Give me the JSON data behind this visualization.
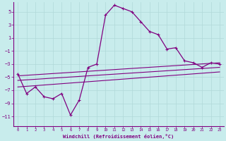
{
  "xlabel": "Windchill (Refroidissement éolien,°C)",
  "bg_color": "#c8ecec",
  "grid_color": "#b0d8d8",
  "line_color": "#800080",
  "xlim": [
    -0.5,
    23.5
  ],
  "ylim": [
    -12.5,
    6.5
  ],
  "yticks": [
    5,
    3,
    1,
    -1,
    -3,
    -5,
    -7,
    -9,
    -11
  ],
  "xticks": [
    0,
    1,
    2,
    3,
    4,
    5,
    6,
    7,
    8,
    9,
    10,
    11,
    12,
    13,
    14,
    15,
    16,
    17,
    18,
    19,
    20,
    21,
    22,
    23
  ],
  "main_x": [
    0,
    1,
    2,
    3,
    4,
    5,
    6,
    7,
    8,
    9,
    10,
    11,
    12,
    13,
    14,
    15,
    16,
    17,
    18,
    19,
    20,
    21,
    22,
    23
  ],
  "main_y": [
    -4.5,
    -7.5,
    -6.5,
    -8.0,
    -8.3,
    -7.5,
    -10.8,
    -8.5,
    -3.5,
    -3.0,
    4.5,
    6.0,
    5.5,
    5.0,
    3.5,
    2.0,
    1.5,
    -0.7,
    -0.5,
    -2.5,
    -2.8,
    -3.5,
    -2.8,
    -3.0
  ],
  "line2_x": [
    0,
    23
  ],
  "line2_y": [
    -4.8,
    -2.8
  ],
  "line3_x": [
    0,
    23
  ],
  "line3_y": [
    -5.5,
    -3.5
  ],
  "line4_x": [
    0,
    23
  ],
  "line4_y": [
    -6.5,
    -4.2
  ]
}
